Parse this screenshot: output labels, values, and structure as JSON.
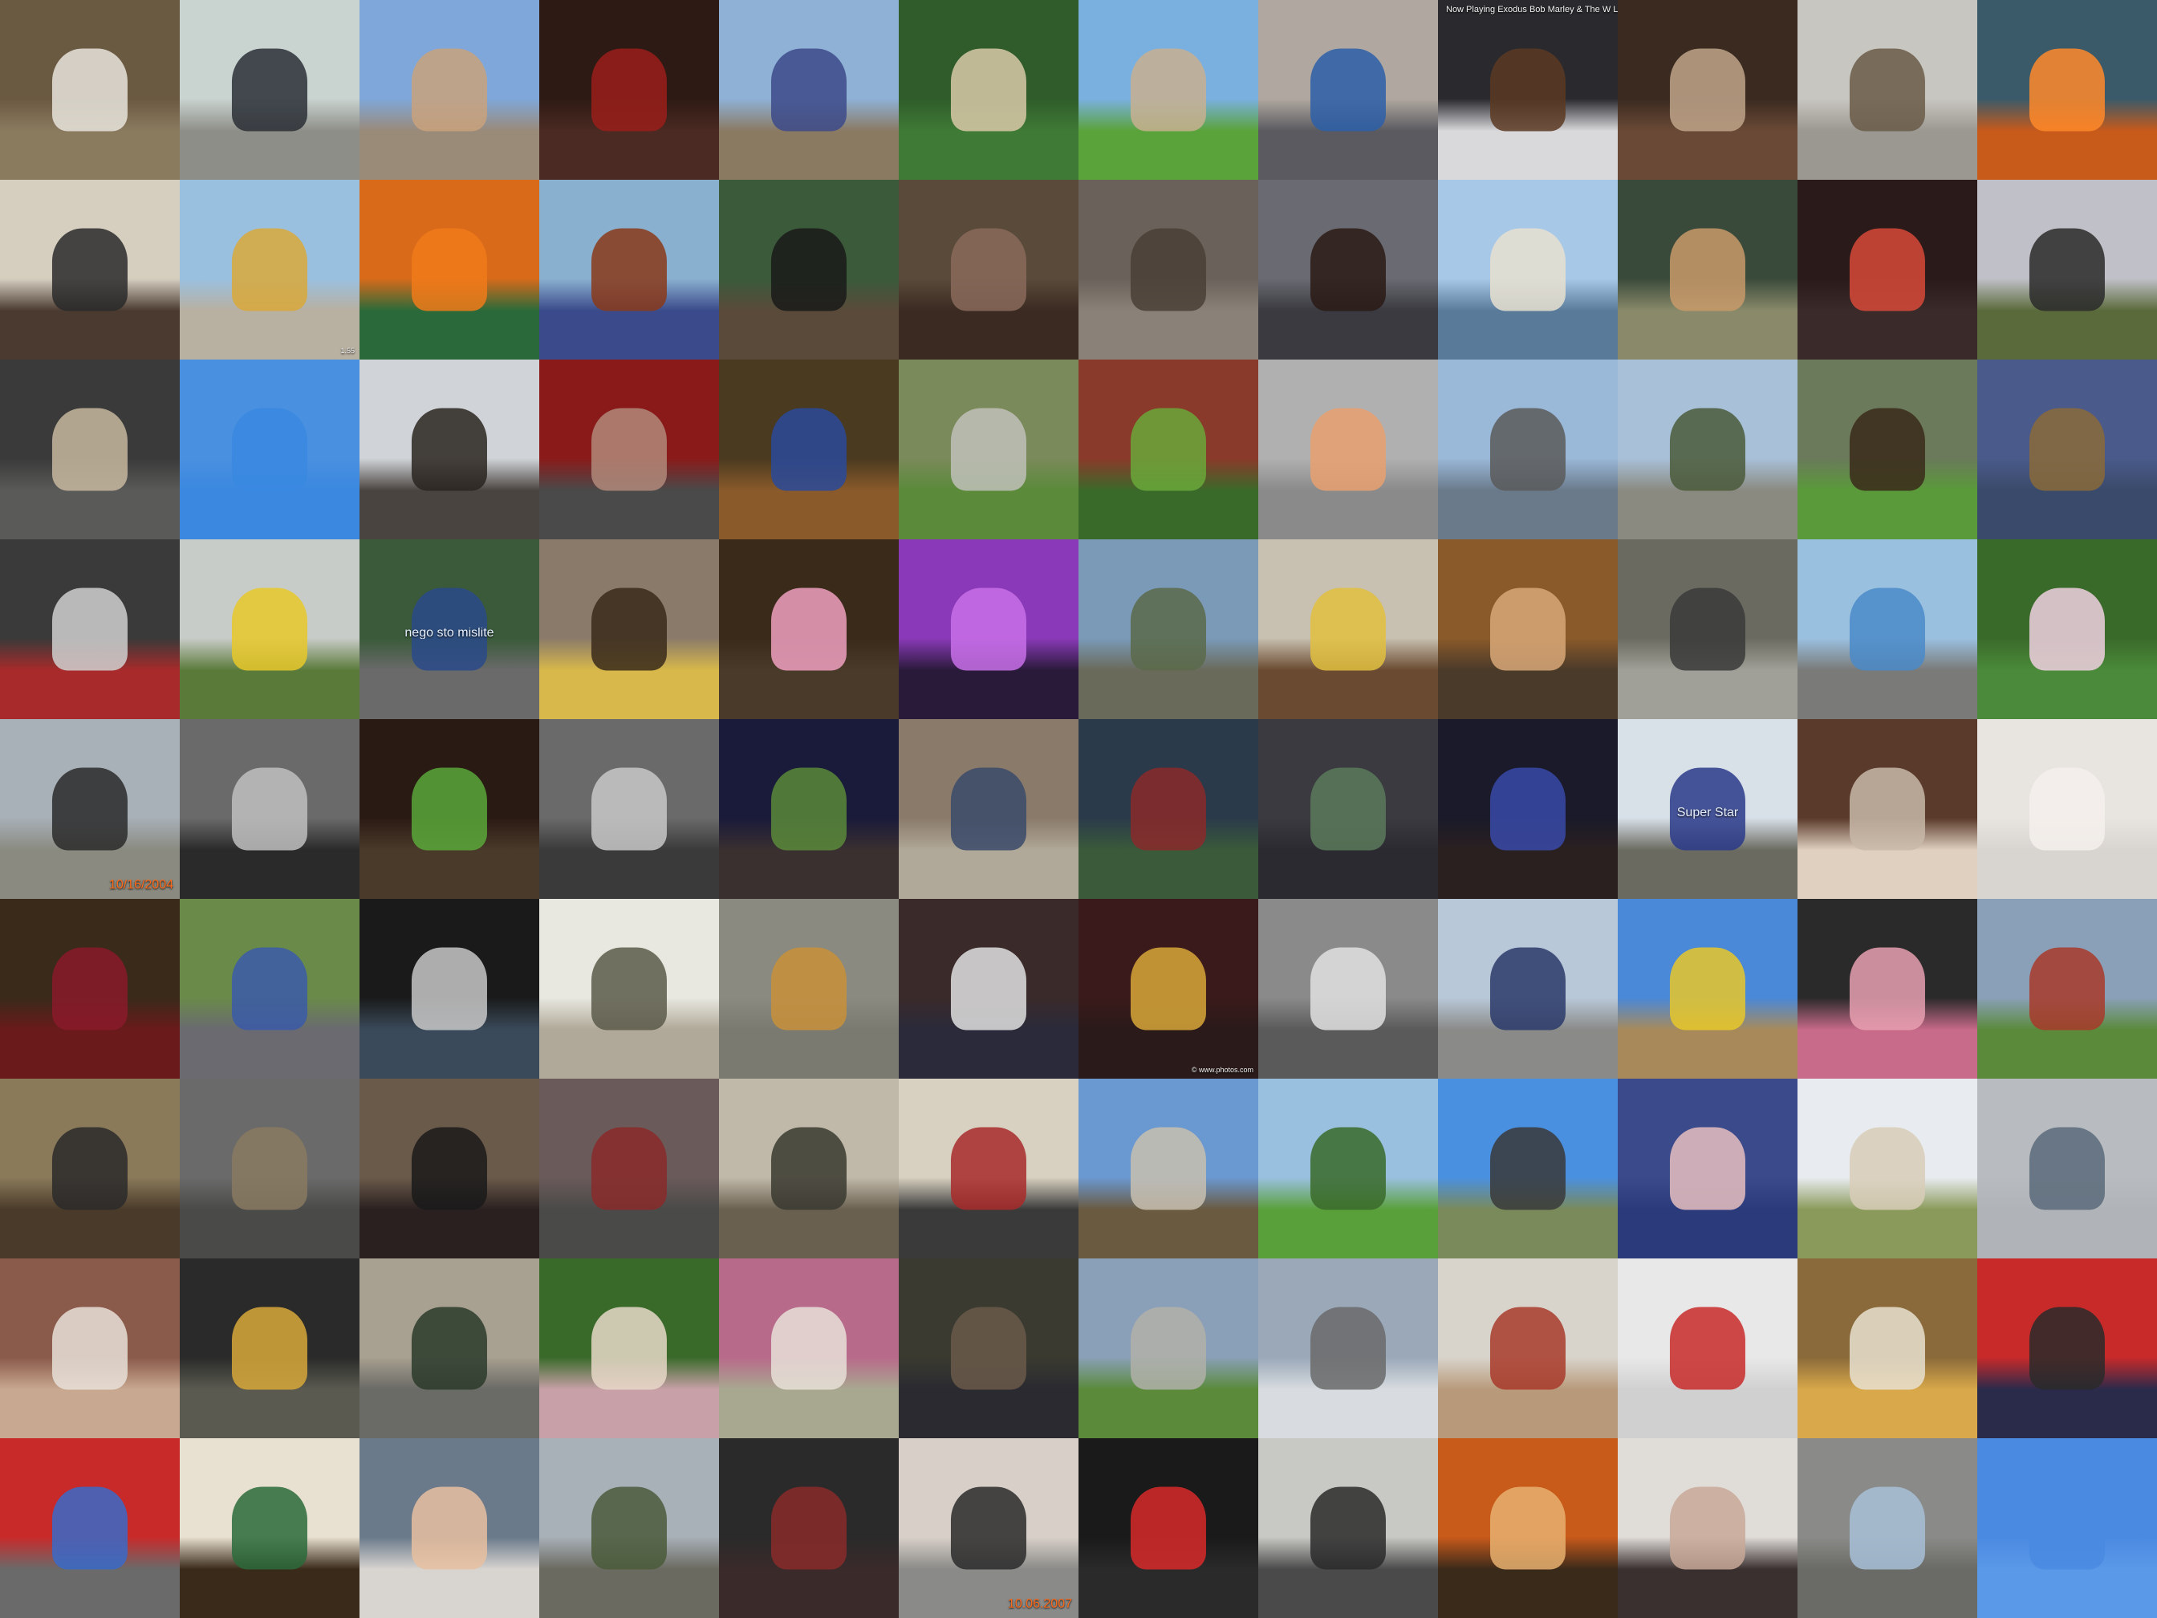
{
  "grid": {
    "columns": 12,
    "rows": 9
  },
  "tiles": [
    {
      "name": "goats-in-pen",
      "top": "#6b5a42",
      "bottom": "#8a7a5e",
      "subject": "#e8e4dc"
    },
    {
      "name": "people-by-car-street",
      "top": "#c9d3cf",
      "bottom": "#8e8e88",
      "subject": "#2a2f36"
    },
    {
      "name": "narrow-european-street",
      "top": "#7fa7d9",
      "bottom": "#9a8a78",
      "subject": "#c9a27c"
    },
    {
      "name": "red-leather-armchair",
      "top": "#2e1a14",
      "bottom": "#4a2a22",
      "subject": "#9a1e1a"
    },
    {
      "name": "cowboy-on-horse",
      "top": "#8fb1d6",
      "bottom": "#8a7a62",
      "subject": "#3c4a8a"
    },
    {
      "name": "show-jumping-horse",
      "top": "#2f5c2a",
      "bottom": "#3f7a36",
      "subject": "#d9c9a8"
    },
    {
      "name": "green-field-horse-rider",
      "top": "#7ab0e0",
      "bottom": "#5aa33a",
      "subject": "#c8b090"
    },
    {
      "name": "woman-blue-jacket-window",
      "top": "#b0a8a0",
      "bottom": "#5a5a60",
      "subject": "#2d5fa8"
    },
    {
      "name": "now-playing-monitor",
      "top": "#2a2a2e",
      "bottom": "#d9d9dc",
      "subject": "#5a3a22",
      "overlay": "Now Playing   Exodus   Bob Marley & The W   Legend",
      "overlayClass": "panel"
    },
    {
      "name": "people-on-couch",
      "top": "#3a2a20",
      "bottom": "#6a4a36",
      "subject": "#c0a48a"
    },
    {
      "name": "bird-on-wet-sand",
      "top": "#c8c6c0",
      "bottom": "#9a9890",
      "subject": "#6a5a48"
    },
    {
      "name": "woman-orange-hair-camera",
      "top": "#3a5a6a",
      "bottom": "#c85a1a",
      "subject": "#ff8a2a"
    },
    {
      "name": "violin-player-room",
      "top": "#d6cfc0",
      "bottom": "#4a3a30",
      "subject": "#2a2a2a"
    },
    {
      "name": "yellow-tram-station",
      "top": "#9ac0e0",
      "bottom": "#b8b0a0",
      "subject": "#d9a83a",
      "overlay": "1.55",
      "overlayClass": "tiny"
    },
    {
      "name": "orange-soda-bottles",
      "top": "#d86a1a",
      "bottom": "#2a6a3a",
      "subject": "#f07a1a"
    },
    {
      "name": "seedling-in-pot",
      "top": "#8ab0d0",
      "bottom": "#3a4a8a",
      "subject": "#8a3a1a"
    },
    {
      "name": "stage-performers",
      "top": "#3a5a3a",
      "bottom": "#5a4a3a",
      "subject": "#1a1a1a"
    },
    {
      "name": "meeting-room-people",
      "top": "#5a4a3a",
      "bottom": "#3a2a22",
      "subject": "#8a6a5a"
    },
    {
      "name": "rock-arch-tourists",
      "top": "#6a625a",
      "bottom": "#8a8278",
      "subject": "#4a4036"
    },
    {
      "name": "dog-in-car-window",
      "top": "#6a6a72",
      "bottom": "#3a3a40",
      "subject": "#2a1a14"
    },
    {
      "name": "venice-grand-canal",
      "top": "#a8c8e8",
      "bottom": "#5a7a9a",
      "subject": "#e8e0d0"
    },
    {
      "name": "redhead-man-sitting",
      "top": "#3a4a3a",
      "bottom": "#8a8a6a",
      "subject": "#c89a6a"
    },
    {
      "name": "conference-podium",
      "top": "#2a1a1a",
      "bottom": "#3a2a2a",
      "subject": "#d84a3a"
    },
    {
      "name": "leaping-man-landscape",
      "top": "#c0c0c8",
      "bottom": "#5a6a3a",
      "subject": "#2a2a2a"
    },
    {
      "name": "dog-in-crate",
      "top": "#3a3a3a",
      "bottom": "#5a5a58",
      "subject": "#c8b8a0"
    },
    {
      "name": "airplane-blue-sky",
      "top": "#4a90e0",
      "bottom": "#3a88e0",
      "subject": "#3a88e0"
    },
    {
      "name": "horse-rider-silhouette",
      "top": "#d0d4d8",
      "bottom": "#4a4440",
      "subject": "#2a2420"
    },
    {
      "name": "chair-by-red-graffiti",
      "top": "#8a1a1a",
      "bottom": "#4a4a4a",
      "subject": "#b08a7a"
    },
    {
      "name": "museum-dinosaur-exhibit",
      "top": "#4a3a20",
      "bottom": "#8a5a2a",
      "subject": "#2a4a9a"
    },
    {
      "name": "man-with-sheep-field",
      "top": "#7a8a5a",
      "bottom": "#5a8a3a",
      "subject": "#c0c0b8"
    },
    {
      "name": "succulent-plants-brick",
      "top": "#8a3a2a",
      "bottom": "#3a6a2a",
      "subject": "#6aa83a"
    },
    {
      "name": "child-with-laptop",
      "top": "#b0b0b0",
      "bottom": "#8a8a8a",
      "subject": "#e8a070"
    },
    {
      "name": "brooklyn-bridge",
      "top": "#9ab8d8",
      "bottom": "#6a7a8a",
      "subject": "#5a5a5a"
    },
    {
      "name": "jeep-on-rocky-shore",
      "top": "#a8c0d8",
      "bottom": "#8a8a80",
      "subject": "#4a5a3a"
    },
    {
      "name": "show-jumping-arena",
      "top": "#6a7a5a",
      "bottom": "#5a9a3a",
      "subject": "#3a2a1a"
    },
    {
      "name": "yorkshire-terrier",
      "top": "#4a5a8a",
      "bottom": "#3a4a6a",
      "subject": "#8a6a3a"
    },
    {
      "name": "cyclist-helmet-closeup",
      "top": "#3a3a3a",
      "bottom": "#a82a2a",
      "subject": "#d0d0d0"
    },
    {
      "name": "runner-foggy-field",
      "top": "#c8ccc8",
      "bottom": "#5a7a3a",
      "subject": "#e8c82a"
    },
    {
      "name": "blue-city-bus",
      "top": "#3a5a3a",
      "bottom": "#6a6a6a",
      "subject": "#2a4a8a",
      "overlay": "nego sto mislite",
      "overlayClass": "sign"
    },
    {
      "name": "girl-taking-photo",
      "top": "#8a7a6a",
      "bottom": "#d8b84a",
      "subject": "#3a2a1a"
    },
    {
      "name": "toddler-in-hallway",
      "top": "#3a2a1a",
      "bottom": "#4a3a2a",
      "subject": "#f0a0c0"
    },
    {
      "name": "purple-stage-band",
      "top": "#8a3ab8",
      "bottom": "#2a1a3a",
      "subject": "#c870e8"
    },
    {
      "name": "river-rocky-bank",
      "top": "#7a9ab8",
      "bottom": "#6a6a5a",
      "subject": "#5a6a4a"
    },
    {
      "name": "dining-room-interior",
      "top": "#c8c0b0",
      "bottom": "#6a4a30",
      "subject": "#e0c040"
    },
    {
      "name": "haircut-closeup",
      "top": "#8a5a2a",
      "bottom": "#4a3a2a",
      "subject": "#d8a878"
    },
    {
      "name": "cycling-race-street",
      "top": "#6a6a60",
      "bottom": "#a0a098",
      "subject": "#3a3a3a"
    },
    {
      "name": "blue-fiat-500",
      "top": "#9ac0e0",
      "bottom": "#7a7a78",
      "subject": "#4a8ac8"
    },
    {
      "name": "girl-white-hat-garden",
      "top": "#3a6a2a",
      "bottom": "#4a8a3a",
      "subject": "#f0d0e0"
    },
    {
      "name": "couple-walking-path",
      "top": "#a8b0b8",
      "bottom": "#8a8a80",
      "subject": "#2a2a2a",
      "overlay": "10/16/2004",
      "overlayClass": "date"
    },
    {
      "name": "bw-shop-doorway",
      "top": "#6a6a6a",
      "bottom": "#2a2a2a",
      "subject": "#c0c0c0"
    },
    {
      "name": "street-violinists",
      "top": "#2a1a14",
      "bottom": "#4a3a2a",
      "subject": "#5aa83a"
    },
    {
      "name": "bw-people-room",
      "top": "#6a6a6a",
      "bottom": "#3a3a3a",
      "subject": "#c8c8c8"
    },
    {
      "name": "guitarist-singing",
      "top": "#1a1a3a",
      "bottom": "#3a3030",
      "subject": "#5a8a3a"
    },
    {
      "name": "person-with-dog-chair",
      "top": "#8a7a6a",
      "bottom": "#b0a898",
      "subject": "#3a4a6a"
    },
    {
      "name": "crashed-car-in-river",
      "top": "#2a3a4a",
      "bottom": "#3a5a3a",
      "subject": "#8a2a2a"
    },
    {
      "name": "man-at-kiosk",
      "top": "#3a3a40",
      "bottom": "#2a2a30",
      "subject": "#5a7a5a"
    },
    {
      "name": "arc-de-triomphe-night",
      "top": "#1a1a2a",
      "bottom": "#2a2020",
      "subject": "#3a4aa8"
    },
    {
      "name": "super-star-bus",
      "top": "#d8e0e8",
      "bottom": "#6a6a60",
      "subject": "#2a3a8a",
      "overlay": "Super Star",
      "overlayClass": "sign"
    },
    {
      "name": "table-place-setting",
      "top": "#5a3a2a",
      "bottom": "#e0d0c0",
      "subject": "#c8b8a8"
    },
    {
      "name": "white-cat-closeup",
      "top": "#e8e4e0",
      "bottom": "#d8d4d0",
      "subject": "#f4f0ec"
    },
    {
      "name": "woman-red-top-bar",
      "top": "#3a2a1a",
      "bottom": "#6a1a1a",
      "subject": "#8a1a2a"
    },
    {
      "name": "scooter-rider-motion",
      "top": "#6a8a4a",
      "bottom": "#6a6a70",
      "subject": "#3a5aa8"
    },
    {
      "name": "whitewater-rafting",
      "top": "#1a1a1a",
      "bottom": "#3a4a5a",
      "subject": "#c8c8c8"
    },
    {
      "name": "two-men-talking",
      "top": "#e8e8e0",
      "bottom": "#b0a898",
      "subject": "#5a5a4a"
    },
    {
      "name": "two-persian-cats",
      "top": "#8a8a80",
      "bottom": "#7a7a70",
      "subject": "#c8903a"
    },
    {
      "name": "woman-in-egg-chair",
      "top": "#3a2a2a",
      "bottom": "#2a2a3a",
      "subject": "#e0e0e0"
    },
    {
      "name": "trumpet-player",
      "top": "#3a1a1a",
      "bottom": "#2a1a1a",
      "subject": "#d8a83a",
      "overlay": "© www.photos.com",
      "overlayClass": "tiny"
    },
    {
      "name": "bw-street-scene",
      "top": "#8a8a8a",
      "bottom": "#5a5a5a",
      "subject": "#e0e0e0"
    },
    {
      "name": "man-by-train-tracks",
      "top": "#b8c8d8",
      "bottom": "#8a8a88",
      "subject": "#2a3a6a"
    },
    {
      "name": "jumping-man-yellow-wall",
      "top": "#4a88d8",
      "bottom": "#a88a5a",
      "subject": "#e8c82a"
    },
    {
      "name": "girl-on-phone",
      "top": "#2a2a2a",
      "bottom": "#c86a8a",
      "subject": "#e8a0b0"
    },
    {
      "name": "train-countryside",
      "top": "#8aa0b8",
      "bottom": "#5a8a3a",
      "subject": "#a83a2a"
    },
    {
      "name": "computer-lab",
      "top": "#8a7a5a",
      "bottom": "#4a3a2a",
      "subject": "#2a2a2a"
    },
    {
      "name": "beach-stormy-sea",
      "top": "#6a6a6a",
      "bottom": "#4a4a48",
      "subject": "#8a7a60"
    },
    {
      "name": "black-cat-blanket",
      "top": "#6a5a4a",
      "bottom": "#2a2020",
      "subject": "#1a1a1a"
    },
    {
      "name": "model-railway",
      "top": "#6a5a5a",
      "bottom": "#4a4a48",
      "subject": "#8a2a2a"
    },
    {
      "name": "horseback-warriors",
      "top": "#c0b8a8",
      "bottom": "#6a6050",
      "subject": "#3a3a30"
    },
    {
      "name": "dining-table-centerpiece",
      "top": "#d8d0c0",
      "bottom": "#3a3a3a",
      "subject": "#a82a2a"
    },
    {
      "name": "man-red-headscarf",
      "top": "#6a98d0",
      "bottom": "#6a5a40",
      "subject": "#c8c0b0"
    },
    {
      "name": "kids-running-lawn",
      "top": "#9ac0e0",
      "bottom": "#5aa03a",
      "subject": "#3a6a2a"
    },
    {
      "name": "man-leaping-dune",
      "top": "#4a90e0",
      "bottom": "#7a8a5a",
      "subject": "#3a3a3a"
    },
    {
      "name": "mother-child-sofa",
      "top": "#3a4a8a",
      "bottom": "#2a3a7a",
      "subject": "#e8c0c0"
    },
    {
      "name": "two-sheep-hill",
      "top": "#e8ecf0",
      "bottom": "#8a9a5a",
      "subject": "#d8ccb8"
    },
    {
      "name": "airplane-gray-sky",
      "top": "#b8bcc0",
      "bottom": "#b0b4b8",
      "subject": "#5a6a7a"
    },
    {
      "name": "dalmatian-and-cat",
      "top": "#8a5a4a",
      "bottom": "#c8a890",
      "subject": "#e8e0d8"
    },
    {
      "name": "guitar-shop-musicians",
      "top": "#2a2a2a",
      "bottom": "#5a5a50",
      "subject": "#d8a83a"
    },
    {
      "name": "vintage-green-car",
      "top": "#a8a090",
      "bottom": "#6a6a66",
      "subject": "#2a3a2a"
    },
    {
      "name": "bulldog-portrait",
      "top": "#3a6a2a",
      "bottom": "#c8a0a8",
      "subject": "#e8d8c8"
    },
    {
      "name": "family-garden-bench",
      "top": "#b86a8a",
      "bottom": "#a8a890",
      "subject": "#e8e0d8"
    },
    {
      "name": "skateboard-park",
      "top": "#3a3a30",
      "bottom": "#2a2a30",
      "subject": "#6a5a4a"
    },
    {
      "name": "park-sidewalk",
      "top": "#8aa0b8",
      "bottom": "#5a8a3a",
      "subject": "#b0b0a8"
    },
    {
      "name": "snowy-construction-site",
      "top": "#9aa8b8",
      "bottom": "#d8dce0",
      "subject": "#6a6a6a"
    },
    {
      "name": "bedroom-interior",
      "top": "#d8d4cc",
      "bottom": "#b89a7a",
      "subject": "#a83a2a"
    },
    {
      "name": "man-with-motorbike",
      "top": "#e8e8e8",
      "bottom": "#d0d0d0",
      "subject": "#c82a2a"
    },
    {
      "name": "two-men-yellow-floor",
      "top": "#8a6a3a",
      "bottom": "#d8a84a",
      "subject": "#e8e0d0"
    },
    {
      "name": "siamese-cat-red",
      "top": "#c82a2a",
      "bottom": "#2a2a4a",
      "subject": "#2a2a2a"
    },
    {
      "name": "boy-holding-book",
      "top": "#c82a2a",
      "bottom": "#6a6a6a",
      "subject": "#3a6ac8"
    },
    {
      "name": "pool-table-room",
      "top": "#e8e0d0",
      "bottom": "#3a2a1a",
      "subject": "#2a6a3a"
    },
    {
      "name": "woman-with-baby-bed",
      "top": "#6a7a8a",
      "bottom": "#d8d4d0",
      "subject": "#e8c0a0"
    },
    {
      "name": "railway-track-town",
      "top": "#a8b0b8",
      "bottom": "#6a6a60",
      "subject": "#4a5a3a"
    },
    {
      "name": "dark-hallway-desk",
      "top": "#2a2a2a",
      "bottom": "#3a2a2a",
      "subject": "#8a2a2a"
    },
    {
      "name": "man-on-motorcycle",
      "top": "#d8d0c8",
      "bottom": "#8a8a88",
      "subject": "#2a2a2a",
      "overlay": "10.06.2007",
      "overlayClass": "date"
    },
    {
      "name": "red-white-scooter",
      "top": "#1a1a1a",
      "bottom": "#2a2a2a",
      "subject": "#d82a2a"
    },
    {
      "name": "girl-pool-table",
      "top": "#c8c8c4",
      "bottom": "#4a4a4a",
      "subject": "#2a2a2a"
    },
    {
      "name": "friends-at-pub",
      "top": "#c85a1a",
      "bottom": "#3a2a1a",
      "subject": "#e8b070"
    },
    {
      "name": "living-room-couch",
      "top": "#e0dcd8",
      "bottom": "#3a3030",
      "subject": "#c8a898"
    },
    {
      "name": "silver-car-parked",
      "top": "#8a8a88",
      "bottom": "#6a6a66",
      "subject": "#a8c0d8"
    },
    {
      "name": "kite-blue-sky",
      "top": "#4a8ae0",
      "bottom": "#5a98e8",
      "subject": "#4a8ae0"
    }
  ]
}
